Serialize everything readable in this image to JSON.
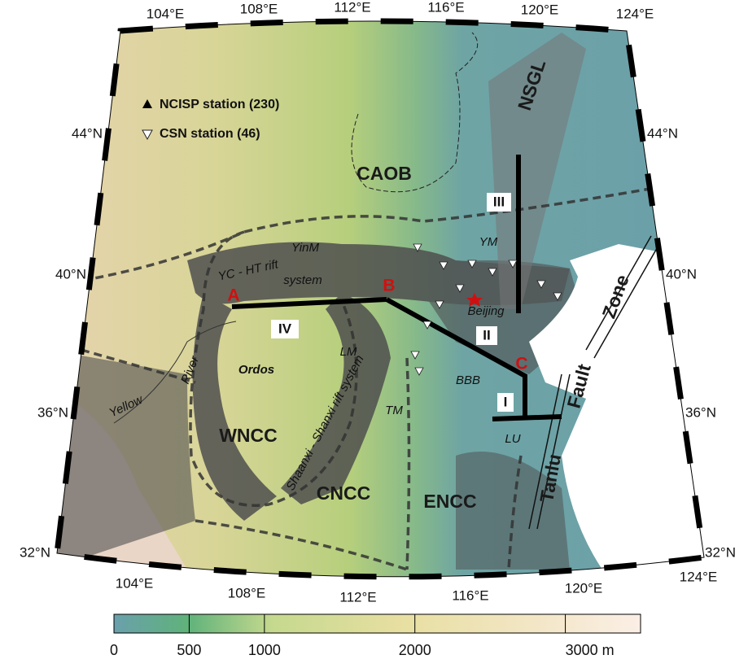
{
  "map": {
    "lon_labels_top": [
      "104°E",
      "108°E",
      "112°E",
      "116°E",
      "120°E",
      "124°E"
    ],
    "lon_labels_bottom": [
      "104°E",
      "108°E",
      "112°E",
      "116°E",
      "120°E",
      "124°E"
    ],
    "lat_labels_left": [
      "44°N",
      "40°N",
      "36°N",
      "32°N"
    ],
    "lat_labels_right": [
      "44°N",
      "40°N",
      "36°N",
      "32°N"
    ],
    "legend": [
      "NCISP station (230)",
      "CSN station (46)"
    ],
    "regions": [
      "NSGL",
      "CAOB",
      "YinM",
      "YM",
      "YC - HT rift",
      "system",
      "Ordos",
      "LM",
      "Shaanxi - Shanxi rift system",
      "TM",
      "BBB",
      "WNCC",
      "CNCC",
      "ENCC",
      "LU",
      "Beijing",
      "Yellow",
      "River",
      "Tanlu",
      "Fault",
      "Zone"
    ],
    "profile_points": [
      "A",
      "B",
      "C"
    ],
    "profiles": [
      "III",
      "IV",
      "II",
      "I"
    ],
    "colorbar": {
      "range": [
        0,
        3500
      ],
      "ticks": [
        0,
        500,
        1000,
        2000,
        {
          "value": 3000,
          "label": "3000 m"
        }
      ]
    }
  }
}
